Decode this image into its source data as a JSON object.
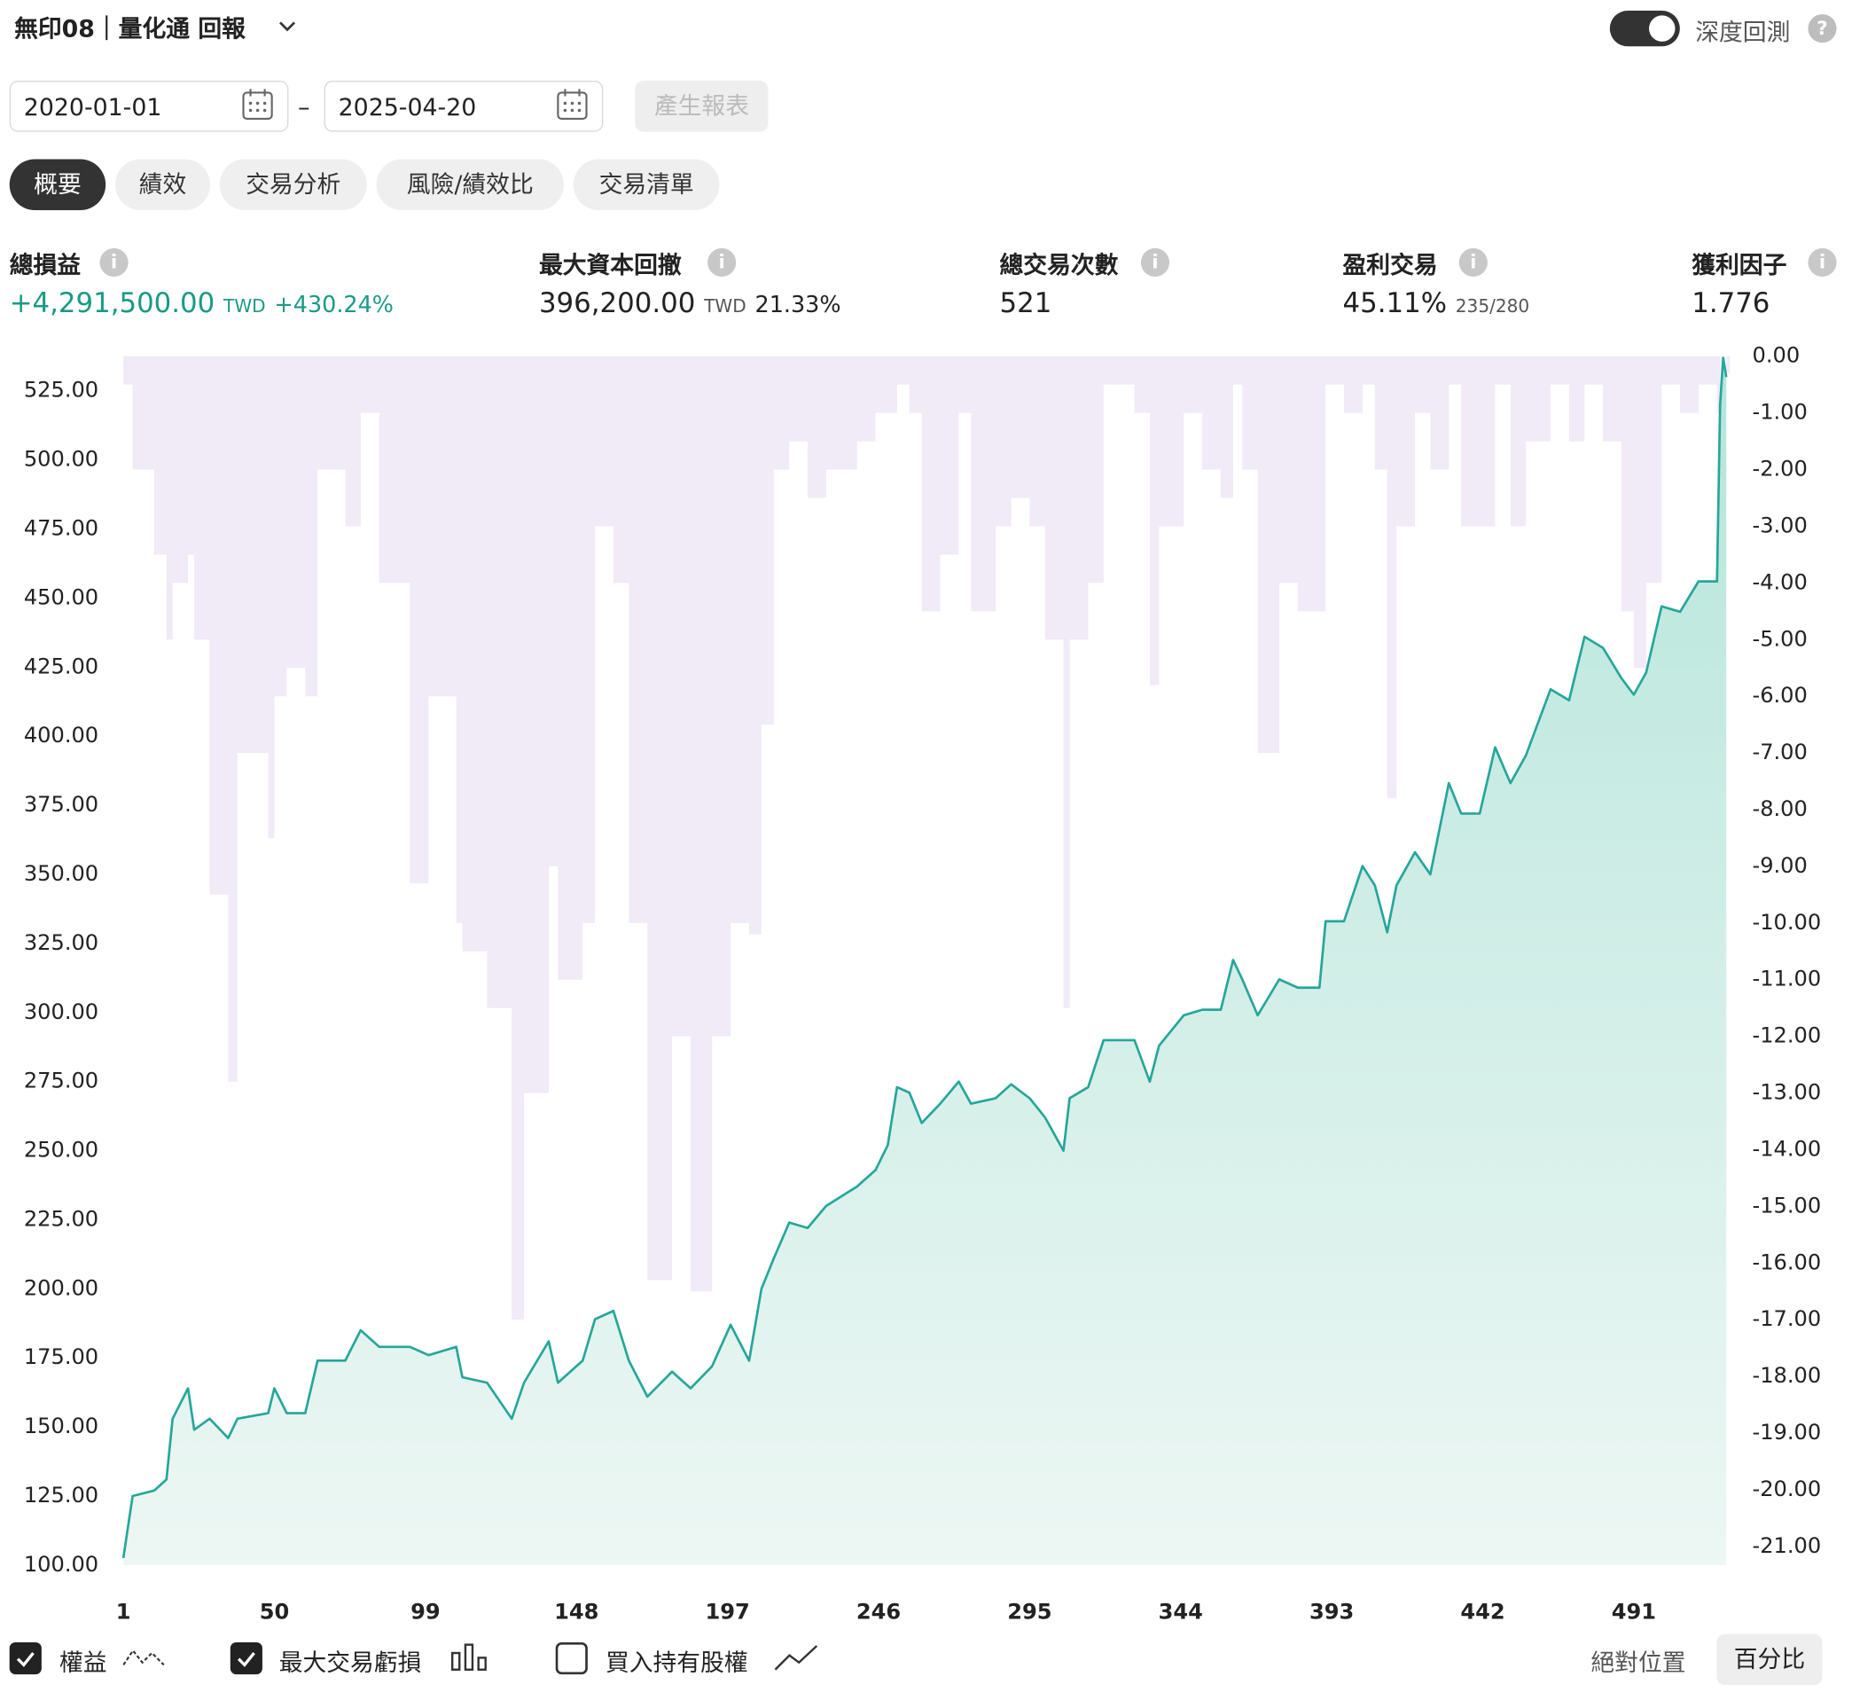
{
  "header": {
    "title": "無印08｜量化通 回報",
    "toggle_label": "深度回測",
    "help": "?"
  },
  "filters": {
    "start_date": "2020-01-01",
    "separator": "–",
    "end_date": "2025-04-20",
    "generate": "產生報表"
  },
  "tabs": [
    "概要",
    "績效",
    "交易分析",
    "風險/績效比",
    "交易清單"
  ],
  "stats": [
    {
      "label": "總損益",
      "value": "+4,291,500.00",
      "unit": "TWD",
      "extra": "+430.24%"
    },
    {
      "label": "最大資本回撤",
      "value": "396,200.00",
      "unit": "TWD",
      "extra": "21.33%"
    },
    {
      "label": "總交易次數",
      "value": "521"
    },
    {
      "label": "盈利交易",
      "value": "45.11%",
      "extra": "235/280"
    },
    {
      "label": "獲利因子",
      "value": "1.776"
    }
  ],
  "controls": {
    "buy_hold": "買入持有股權",
    "absolute": "絕對位置",
    "percent": "百分比"
  },
  "chart_data": {
    "type": "line",
    "x": [
      1,
      4,
      11,
      15,
      17,
      22,
      24,
      29,
      35,
      38,
      48,
      50,
      54,
      60,
      64,
      73,
      78,
      84,
      94,
      100,
      109,
      111,
      119,
      127,
      131,
      139,
      142,
      150,
      154,
      160,
      165,
      171,
      179,
      185,
      192,
      198,
      204,
      208,
      212,
      217,
      223,
      229,
      239,
      245,
      249,
      252,
      256,
      260,
      266,
      272,
      276,
      284,
      289,
      295,
      300,
      306,
      308,
      314,
      319,
      329,
      334,
      337,
      345,
      351,
      357,
      361,
      364,
      369,
      376,
      382,
      389,
      391,
      397,
      403,
      407,
      411,
      414,
      420,
      425,
      431,
      435,
      441,
      446,
      451,
      456,
      464,
      470,
      475,
      481,
      487,
      491,
      495,
      500,
      506,
      512,
      518,
      519,
      520,
      521
    ],
    "series": [
      {
        "name": "權益",
        "color": "#26a69a",
        "visible": true,
        "values": [
          102.6,
          125,
          127,
          131,
          153,
          164,
          149,
          153,
          146,
          153,
          155,
          164,
          155,
          155,
          174,
          174,
          185,
          179,
          179,
          176,
          179,
          168,
          166,
          153,
          166,
          181,
          166,
          174,
          189,
          192,
          174,
          161,
          170,
          164,
          172,
          187,
          174,
          200,
          211,
          224,
          222,
          230,
          237,
          243,
          252,
          273,
          271,
          260,
          267,
          275,
          267,
          269,
          274,
          269,
          262,
          250,
          269,
          273,
          290,
          290,
          275,
          288,
          299,
          301,
          301,
          319,
          312,
          299,
          312,
          309,
          309,
          333,
          333,
          353,
          346,
          329,
          346,
          358,
          350,
          383,
          372,
          372,
          396,
          383,
          393,
          417,
          413,
          436,
          432,
          421,
          415,
          423,
          447,
          445,
          456,
          456,
          520,
          537,
          530
        ]
      },
      {
        "name": "最大交易虧損",
        "color": "#e6d8f0",
        "visible": true,
        "axis": "y2",
        "values": [
          -0.5,
          -2,
          -3.5,
          -5,
          -4,
          -3.5,
          -5,
          -9.5,
          -12.8,
          -7,
          -8.5,
          -6,
          -5.5,
          -6,
          -2,
          -3,
          -1,
          -4,
          -9.3,
          -6,
          -10,
          -10.5,
          -11.5,
          -17,
          -13,
          -9,
          -11,
          -10,
          -3,
          -4,
          -10,
          -16.3,
          -12,
          -16.5,
          -12,
          -10,
          -10.2,
          -6.5,
          -2,
          -1.5,
          -2.5,
          -2,
          -1.5,
          -1,
          -1,
          -0.5,
          -1,
          -4.5,
          -3.5,
          -1,
          -4.5,
          -3,
          -2.5,
          -3,
          -5,
          -11.5,
          -5,
          -4,
          -0.5,
          -1,
          -5.8,
          -3,
          -1,
          -2,
          -2.5,
          -0.5,
          -2,
          -7,
          -4,
          -4.5,
          -4.5,
          -0.5,
          -1,
          -0.5,
          -2,
          -7.8,
          -3,
          -1,
          -2,
          -0.5,
          -3,
          -3,
          -0.5,
          -3,
          -1.5,
          -0.5,
          -1.5,
          -0.5,
          -1.5,
          -4.5,
          -5.5,
          -4,
          -0.5,
          -1,
          -0.5,
          -1,
          0,
          0,
          -0.3
        ]
      }
    ],
    "xlim": [
      -0.5,
      522.5
    ],
    "xticks": [
      1,
      50,
      99,
      148,
      197,
      246,
      295,
      344,
      393,
      442,
      491
    ],
    "ylim": [
      100,
      537.5
    ],
    "yticks": [
      {
        "value": 100,
        "label": "100.00"
      },
      {
        "value": 125,
        "label": "125.00"
      },
      {
        "value": 150,
        "label": "150.00"
      },
      {
        "value": 175,
        "label": "175.00"
      },
      {
        "value": 200,
        "label": "200.00"
      },
      {
        "value": 225,
        "label": "225.00"
      },
      {
        "value": 250,
        "label": "250.00"
      },
      {
        "value": 275,
        "label": "275.00"
      },
      {
        "value": 300,
        "label": "300.00"
      },
      {
        "value": 325,
        "label": "325.00"
      },
      {
        "value": 350,
        "label": "350.00"
      },
      {
        "value": 375,
        "label": "375.00"
      },
      {
        "value": 400,
        "label": "400.00"
      },
      {
        "value": 425,
        "label": "425.00"
      },
      {
        "value": 450,
        "label": "450.00"
      },
      {
        "value": 475,
        "label": "475.00"
      },
      {
        "value": 500,
        "label": "500.00"
      },
      {
        "value": 525,
        "label": "525.00"
      }
    ],
    "y2lim": [
      -21.33,
      0
    ],
    "y2ticks": [
      {
        "value": 0,
        "label": "0.00"
      },
      {
        "value": -1,
        "label": "-1.00"
      },
      {
        "value": -2,
        "label": "-2.00"
      },
      {
        "value": -3,
        "label": "-3.00"
      },
      {
        "value": -4,
        "label": "-4.00"
      },
      {
        "value": -5,
        "label": "-5.00"
      },
      {
        "value": -6,
        "label": "-6.00"
      },
      {
        "value": -7,
        "label": "-7.00"
      },
      {
        "value": -8,
        "label": "-8.00"
      },
      {
        "value": -9,
        "label": "-9.00"
      },
      {
        "value": -10,
        "label": "-10.00"
      },
      {
        "value": -11,
        "label": "-11.00"
      },
      {
        "value": -12,
        "label": "-12.00"
      },
      {
        "value": -13,
        "label": "-13.00"
      },
      {
        "value": -14,
        "label": "-14.00"
      },
      {
        "value": -15,
        "label": "-15.00"
      },
      {
        "value": -16,
        "label": "-16.00"
      },
      {
        "value": -17,
        "label": "-17.00"
      },
      {
        "value": -18,
        "label": "-18.00"
      },
      {
        "value": -19,
        "label": "-19.00"
      },
      {
        "value": -20,
        "label": "-20.00"
      },
      {
        "value": -21,
        "label": "-21.00"
      }
    ]
  }
}
